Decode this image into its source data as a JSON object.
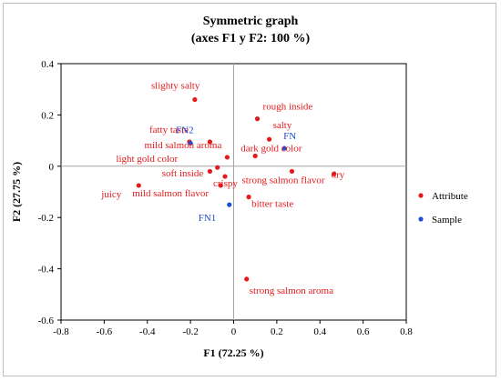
{
  "chart_data": {
    "type": "scatter",
    "title": "Symmetric graph",
    "subtitle": "(axes F1 y F2: 100 %)",
    "xlabel": "F1 (72.25 %)",
    "ylabel": "F2 (27.75 %)",
    "xlim": [
      -0.8,
      0.8
    ],
    "ylim": [
      -0.6,
      0.4
    ],
    "x_ticks": [
      "-0.8",
      "-0.6",
      "-0.4",
      "-0.2",
      "0",
      "0.2",
      "0.4",
      "0.6",
      "0.8"
    ],
    "y_ticks": [
      "-0.6",
      "-0.4",
      "-0.2",
      "0",
      "0.2",
      "0.4"
    ],
    "grid": false,
    "legend_position": "right",
    "series": [
      {
        "name": "Attribute",
        "color": "#e31a1c",
        "points": [
          {
            "label": "slighty salty",
            "x": -0.18,
            "y": 0.26
          },
          {
            "label": "rough inside",
            "x": 0.11,
            "y": 0.185
          },
          {
            "label": "salty",
            "x": 0.165,
            "y": 0.105
          },
          {
            "label": "fatty taste",
            "x": -0.205,
            "y": 0.095
          },
          {
            "label": "mild salmon aroma",
            "x": -0.11,
            "y": 0.095
          },
          {
            "label": "dark gold color",
            "x": 0.1,
            "y": 0.04
          },
          {
            "label": "light gold color",
            "x": -0.03,
            "y": 0.035
          },
          {
            "label": "soft inside",
            "x": -0.075,
            "y": -0.005
          },
          {
            "label": "",
            "x": -0.11,
            "y": -0.02
          },
          {
            "label": "crispy",
            "x": -0.04,
            "y": -0.04
          },
          {
            "label": "mild salmon flavor",
            "x": -0.06,
            "y": -0.075
          },
          {
            "label": "juicy",
            "x": -0.44,
            "y": -0.075
          },
          {
            "label": "strong salmon flavor",
            "x": 0.27,
            "y": -0.02
          },
          {
            "label": "dry",
            "x": 0.465,
            "y": -0.03
          },
          {
            "label": "bitter taste",
            "x": 0.07,
            "y": -0.12
          },
          {
            "label": "strong salmon aroma",
            "x": 0.06,
            "y": -0.44
          }
        ]
      },
      {
        "name": "Sample",
        "color": "#1f4fd1",
        "points": [
          {
            "label": "FN2",
            "x": -0.2,
            "y": 0.09
          },
          {
            "label": "FN",
            "x": 0.235,
            "y": 0.07
          },
          {
            "label": "FN1",
            "x": -0.02,
            "y": -0.15
          }
        ]
      }
    ]
  }
}
